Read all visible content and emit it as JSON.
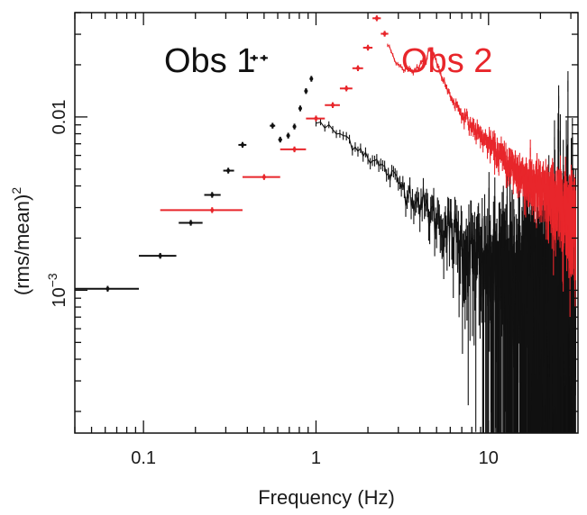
{
  "chart_data": {
    "type": "scatter",
    "title": "",
    "xlabel": "Frequency (Hz)",
    "ylabel_main": "(rms/mean)",
    "ylabel_sup": "2",
    "xscale": "log",
    "yscale": "log",
    "xlim": [
      0.04,
      33
    ],
    "ylim": [
      0.00015,
      0.04
    ],
    "x_tick_labels": [
      {
        "value": 0.1,
        "label": "0.1"
      },
      {
        "value": 1,
        "label": "1"
      },
      {
        "value": 10,
        "label": "10"
      }
    ],
    "y_tick_labels": [
      {
        "value": 0.001,
        "label_base": "10",
        "label_sup": "−3"
      },
      {
        "value": 0.01,
        "label_base": "0.01",
        "label_sup": ""
      }
    ],
    "legend": [
      {
        "label": "Obs 1",
        "color": "#111111"
      },
      {
        "label": "Obs 2",
        "color": "#e8262b"
      }
    ],
    "series": [
      {
        "name": "Obs 1",
        "color": "#111111",
        "points": [
          {
            "x": 0.062,
            "y": 0.00102,
            "xlo": 0.04,
            "xhi": 0.094
          },
          {
            "x": 0.125,
            "y": 0.00158,
            "xlo": 0.094,
            "xhi": 0.155
          },
          {
            "x": 0.188,
            "y": 0.00245,
            "xlo": 0.16,
            "xhi": 0.22
          },
          {
            "x": 0.25,
            "y": 0.00355,
            "xlo": 0.225,
            "xhi": 0.28
          },
          {
            "x": 0.31,
            "y": 0.0049,
            "xlo": 0.29,
            "xhi": 0.335
          },
          {
            "x": 0.375,
            "y": 0.0069,
            "xlo": 0.355,
            "xhi": 0.395
          },
          {
            "x": 0.438,
            "y": 0.0219,
            "xlo": 0.415,
            "xhi": 0.46
          },
          {
            "x": 0.5,
            "y": 0.0219,
            "xlo": 0.475,
            "xhi": 0.525
          },
          {
            "x": 0.56,
            "y": 0.0089,
            "xlo": 0.54,
            "xhi": 0.58
          },
          {
            "x": 0.62,
            "y": 0.0074,
            "xlo": 0.605,
            "xhi": 0.635
          },
          {
            "x": 0.69,
            "y": 0.0078,
            "xlo": 0.675,
            "xhi": 0.705
          },
          {
            "x": 0.75,
            "y": 0.0088,
            "xlo": 0.735,
            "xhi": 0.765
          },
          {
            "x": 0.81,
            "y": 0.0112,
            "xlo": 0.795,
            "xhi": 0.825
          },
          {
            "x": 0.875,
            "y": 0.0141,
            "xlo": 0.86,
            "xhi": 0.89
          },
          {
            "x": 0.94,
            "y": 0.0166,
            "xlo": 0.925,
            "xhi": 0.955
          }
        ],
        "continuum": {
          "x_start": 1.0,
          "x_end": 32,
          "anchors": [
            [
              1.0,
              0.0093
            ],
            [
              1.5,
              0.0076
            ],
            [
              2,
              0.006
            ],
            [
              3,
              0.0042
            ],
            [
              5,
              0.0026
            ],
            [
              7,
              0.00185
            ],
            [
              10,
              0.00125
            ],
            [
              12,
              0.00105
            ],
            [
              16,
              0.00088
            ],
            [
              22,
              0.00079
            ],
            [
              32,
              0.00075
            ]
          ],
          "noise_dex": [
            [
              1.0,
              0.015
            ],
            [
              3,
              0.03
            ],
            [
              6,
              0.08
            ],
            [
              9,
              0.16
            ],
            [
              12,
              0.26
            ],
            [
              18,
              0.38
            ],
            [
              32,
              0.5
            ]
          ]
        }
      },
      {
        "name": "Obs 2",
        "color": "#e8262b",
        "points": [
          {
            "x": 0.25,
            "y": 0.0029,
            "xlo": 0.125,
            "xhi": 0.375
          },
          {
            "x": 0.5,
            "y": 0.0045,
            "xlo": 0.375,
            "xhi": 0.62
          },
          {
            "x": 0.75,
            "y": 0.0065,
            "xlo": 0.62,
            "xhi": 0.875
          },
          {
            "x": 1.0,
            "y": 0.0098,
            "xlo": 0.875,
            "xhi": 1.125
          },
          {
            "x": 1.25,
            "y": 0.0117,
            "xlo": 1.125,
            "xhi": 1.375
          },
          {
            "x": 1.5,
            "y": 0.0146,
            "xlo": 1.375,
            "xhi": 1.625
          },
          {
            "x": 1.75,
            "y": 0.0191,
            "xlo": 1.625,
            "xhi": 1.875
          },
          {
            "x": 2.0,
            "y": 0.0251,
            "xlo": 1.875,
            "xhi": 2.125
          },
          {
            "x": 2.25,
            "y": 0.0371,
            "xlo": 2.125,
            "xhi": 2.375
          },
          {
            "x": 2.5,
            "y": 0.0302,
            "xlo": 2.375,
            "xhi": 2.625
          }
        ],
        "continuum": {
          "x_start": 2.6,
          "x_end": 32,
          "anchors": [
            [
              2.6,
              0.026
            ],
            [
              2.9,
              0.021
            ],
            [
              3.2,
              0.019
            ],
            [
              3.6,
              0.0185
            ],
            [
              4.0,
              0.0195
            ],
            [
              4.3,
              0.022
            ],
            [
              4.6,
              0.0245
            ],
            [
              4.9,
              0.022
            ],
            [
              5.4,
              0.0168
            ],
            [
              6,
              0.0132
            ],
            [
              7,
              0.0105
            ],
            [
              8,
              0.0088
            ],
            [
              10,
              0.007
            ],
            [
              13,
              0.0054
            ],
            [
              17,
              0.0043
            ],
            [
              22,
              0.0035
            ],
            [
              32,
              0.0028
            ]
          ],
          "noise_dex": [
            [
              2.6,
              0.008
            ],
            [
              6,
              0.012
            ],
            [
              10,
              0.03
            ],
            [
              16,
              0.055
            ],
            [
              32,
              0.1
            ]
          ]
        }
      }
    ]
  }
}
